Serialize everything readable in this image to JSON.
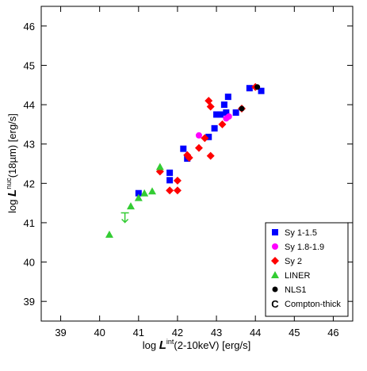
{
  "chart_data": {
    "type": "scatter",
    "xlabel": {
      "prefix": "log ",
      "symbol": "L",
      "sup": "int",
      "suffix": "(2-10keV) [erg/s]"
    },
    "ylabel": {
      "prefix": "log ",
      "symbol": "L",
      "sup": "nuc",
      "suffix": "(18µm) [erg/s]"
    },
    "xlim": [
      38.5,
      46.5
    ],
    "ylim": [
      38.5,
      46.5
    ],
    "xticks": [
      39,
      40,
      41,
      42,
      43,
      44,
      45,
      46
    ],
    "yticks": [
      39,
      40,
      41,
      42,
      43,
      44,
      45,
      46
    ],
    "legend": "lower right",
    "series": [
      {
        "name": "Sy 1-1.5",
        "color": "#0000ff",
        "marker": "square",
        "x": [
          41.0,
          41.8,
          41.8,
          42.15,
          42.25,
          42.8,
          42.95,
          43.0,
          43.1,
          43.2,
          43.25,
          43.3,
          43.5,
          43.85,
          44.15
        ],
        "values": [
          41.75,
          42.27,
          42.08,
          42.88,
          42.63,
          43.18,
          43.4,
          43.75,
          43.75,
          44.0,
          43.8,
          44.2,
          43.8,
          44.42,
          44.35
        ]
      },
      {
        "name": "Sy 1.8-1.9",
        "color": "#ff00ff",
        "marker": "circle",
        "x": [
          42.55,
          43.25,
          43.32
        ],
        "values": [
          43.22,
          43.65,
          43.7
        ]
      },
      {
        "name": "Sy 2",
        "color": "#ff0000",
        "marker": "diamond",
        "x": [
          41.55,
          41.8,
          42.0,
          42.0,
          42.25,
          42.3,
          42.55,
          42.7,
          42.85,
          42.8,
          42.85,
          43.15,
          43.65,
          44.0
        ],
        "values": [
          42.3,
          41.82,
          41.82,
          42.07,
          42.72,
          42.65,
          42.9,
          43.15,
          42.7,
          44.1,
          43.95,
          43.5,
          43.9,
          44.45
        ]
      },
      {
        "name": "LINER",
        "color": "#33cc33",
        "marker": "triangle",
        "x": [
          40.25,
          40.8,
          41.0,
          41.15,
          41.35,
          41.55,
          40.65
        ],
        "values": [
          40.7,
          41.42,
          41.63,
          41.75,
          41.8,
          42.42,
          41.25
        ],
        "upper_limit": [
          false,
          false,
          false,
          false,
          false,
          false,
          true
        ]
      },
      {
        "name": "NLS1",
        "color": "#000000",
        "marker": "dot",
        "x": [
          43.65,
          44.05
        ],
        "values": [
          43.9,
          44.45
        ]
      },
      {
        "name": "Compton-thick",
        "color": "#000000",
        "marker": "C",
        "x": [],
        "values": []
      }
    ]
  }
}
